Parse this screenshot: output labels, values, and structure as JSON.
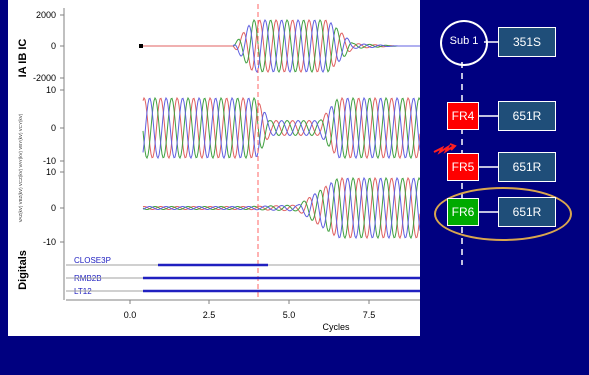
{
  "plot": {
    "ylabel_top": "IA IB IC",
    "ylabel_mid": "VAZ(kV) VBZ(kV) VCZ(kV) VAY(kV) VBY(kV) VCY(kV)",
    "ylabel_digitals": "Digitals",
    "top_ticks": [
      "2000",
      "0",
      "-2000"
    ],
    "mid_ticks": [
      "10",
      "0",
      "-10"
    ],
    "bot_ticks": [
      "10",
      "0",
      "-10"
    ],
    "x_ticks": [
      "0.0",
      "2.5",
      "5.0",
      "7.5"
    ],
    "xlabel": "Cycles",
    "digital_labels": [
      "CLOSE3P",
      "RMB2B",
      "LT12"
    ]
  },
  "diagram": {
    "sub_label": "Sub 1",
    "relay_top": "351S",
    "breakers": [
      {
        "label": "FR4",
        "color": "#ff0000",
        "relay": "651R"
      },
      {
        "label": "FR5",
        "color": "#ff0000",
        "relay": "651R"
      },
      {
        "label": "FR6",
        "color": "#00aa00",
        "relay": "651R"
      }
    ]
  },
  "colors": {
    "background": "#000080",
    "phase_a": "#e06060",
    "phase_b": "#40a040",
    "phase_c": "#6060e0",
    "cursor": "#ff6666",
    "fault_marker": "#ff2020",
    "highlight": "#d9a64e"
  }
}
